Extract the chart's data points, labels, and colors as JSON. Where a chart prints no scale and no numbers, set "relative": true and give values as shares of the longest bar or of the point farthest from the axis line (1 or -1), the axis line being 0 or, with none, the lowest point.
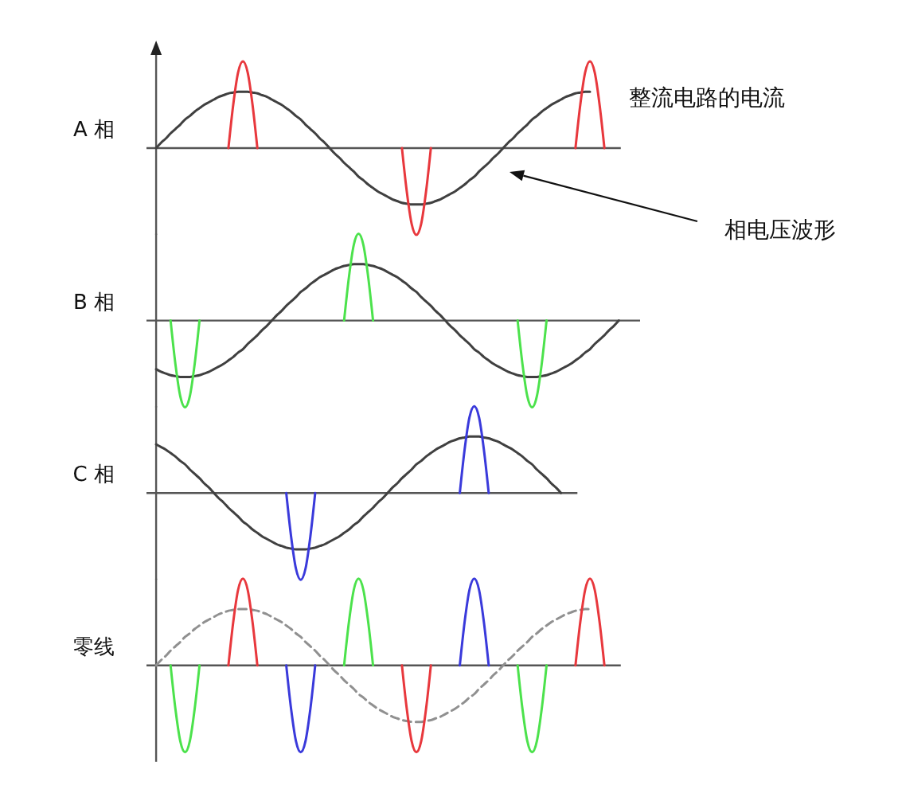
{
  "chart_data": [
    {
      "type": "line",
      "relative": true,
      "ylabel": "A 相",
      "categories": [
        null,
        null,
        null,
        null,
        null,
        null,
        null,
        null,
        null,
        null,
        null,
        null,
        null,
        null,
        null,
        null,
        null,
        null,
        null,
        null,
        null,
        null,
        null,
        null,
        null,
        null,
        null,
        null,
        null,
        null,
        null,
        null,
        null,
        null,
        null,
        null,
        null,
        null,
        null,
        null,
        null,
        null,
        null,
        null,
        null,
        null,
        null,
        null,
        null,
        null,
        null,
        null,
        null,
        null,
        null,
        null,
        null,
        null,
        null,
        null,
        null,
        null,
        null,
        null,
        null,
        null,
        null,
        null,
        null,
        null,
        null,
        null,
        null,
        null,
        null,
        null,
        null,
        null,
        null,
        null,
        null,
        null,
        null,
        null,
        null,
        null,
        null,
        null,
        null,
        null,
        null,
        null,
        null,
        null,
        null,
        null,
        null
      ],
      "annotations": [
        "整流电路的电流",
        "相电压波形"
      ],
      "series": [
        {
          "color": "#404040",
          "values": [
            0,
            0.06,
            0.11,
            0.17,
            0.22,
            0.27,
            0.33,
            0.37,
            0.42,
            0.46,
            0.5,
            0.53,
            0.56,
            0.59,
            0.61,
            0.63,
            0.64,
            0.65,
            0.65,
            0.65,
            0.64,
            0.63,
            0.61,
            0.59,
            0.56,
            0.53,
            0.5,
            0.46,
            0.42,
            0.37,
            0.33,
            0.27,
            0.22,
            0.17,
            0.11,
            0.06,
            0,
            -0.06,
            -0.11,
            -0.17,
            -0.22,
            -0.27,
            -0.33,
            -0.37,
            -0.42,
            -0.46,
            -0.5,
            -0.53,
            -0.56,
            -0.59,
            -0.61,
            -0.63,
            -0.64,
            -0.65,
            -0.65,
            -0.65,
            -0.64,
            -0.63,
            -0.61,
            -0.59,
            -0.56,
            -0.53,
            -0.5,
            -0.46,
            -0.42,
            -0.37,
            -0.33,
            -0.27,
            -0.22,
            -0.17,
            -0.11,
            -0.06,
            0,
            0.06,
            0.11,
            0.17,
            0.22,
            0.27,
            0.33,
            0.37,
            0.42,
            0.46,
            0.5,
            0.53,
            0.56,
            0.59,
            0.61,
            0.63,
            0.64,
            0.65,
            0.65,
            null,
            null,
            null,
            null,
            null,
            null
          ]
        },
        {
          "color": "#e8383d",
          "values": [
            null,
            null,
            null,
            null,
            null,
            null,
            null,
            null,
            null,
            null,
            null,
            null,
            null,
            null,
            null,
            0,
            0.5,
            0.87,
            1,
            0.87,
            0.5,
            0,
            null,
            null,
            null,
            null,
            null,
            null,
            null,
            null,
            null,
            null,
            null,
            null,
            null,
            null,
            null,
            null,
            null,
            null,
            null,
            null,
            null,
            null,
            null,
            null,
            null,
            null,
            null,
            null,
            null,
            0,
            -0.5,
            -0.87,
            -1,
            -0.87,
            -0.5,
            0,
            null,
            null,
            null,
            null,
            null,
            null,
            null,
            null,
            null,
            null,
            null,
            null,
            null,
            null,
            null,
            null,
            null,
            null,
            null,
            null,
            null,
            null,
            null,
            null,
            null,
            null,
            null,
            null,
            null,
            0,
            0.5,
            0.87,
            1,
            0.87,
            0.5,
            0,
            null,
            null,
            null
          ]
        }
      ]
    },
    {
      "type": "line",
      "relative": true,
      "ylabel": "B 相",
      "categories": [
        null,
        null,
        null,
        null,
        null,
        null,
        null,
        null,
        null,
        null,
        null,
        null,
        null,
        null,
        null,
        null,
        null,
        null,
        null,
        null,
        null,
        null,
        null,
        null,
        null,
        null,
        null,
        null,
        null,
        null,
        null,
        null,
        null,
        null,
        null,
        null,
        null,
        null,
        null,
        null,
        null,
        null,
        null,
        null,
        null,
        null,
        null,
        null,
        null,
        null,
        null,
        null,
        null,
        null,
        null,
        null,
        null,
        null,
        null,
        null,
        null,
        null,
        null,
        null,
        null,
        null,
        null,
        null,
        null,
        null,
        null,
        null,
        null,
        null,
        null,
        null,
        null,
        null,
        null,
        null,
        null,
        null,
        null,
        null,
        null,
        null,
        null,
        null,
        null,
        null,
        null,
        null,
        null,
        null,
        null,
        null,
        null,
        null,
        null,
        null,
        null
      ],
      "series": [
        {
          "color": "#404040",
          "values": [
            -0.56,
            -0.59,
            -0.61,
            -0.63,
            -0.64,
            -0.65,
            -0.65,
            -0.65,
            -0.64,
            -0.63,
            -0.61,
            -0.59,
            -0.56,
            -0.53,
            -0.5,
            -0.46,
            -0.42,
            -0.37,
            -0.33,
            -0.27,
            -0.22,
            -0.17,
            -0.11,
            -0.06,
            0,
            0.06,
            0.11,
            0.17,
            0.22,
            0.27,
            0.33,
            0.37,
            0.42,
            0.46,
            0.5,
            0.53,
            0.56,
            0.59,
            0.61,
            0.63,
            0.64,
            0.65,
            0.65,
            0.65,
            0.64,
            0.63,
            0.61,
            0.59,
            0.56,
            0.53,
            0.5,
            0.46,
            0.42,
            0.37,
            0.33,
            0.27,
            0.22,
            0.17,
            0.11,
            0.06,
            0,
            -0.06,
            -0.11,
            -0.17,
            -0.22,
            -0.27,
            -0.33,
            -0.37,
            -0.42,
            -0.46,
            -0.5,
            -0.53,
            -0.56,
            -0.59,
            -0.61,
            -0.63,
            -0.64,
            -0.65,
            -0.65,
            -0.65,
            -0.64,
            -0.63,
            -0.61,
            -0.59,
            -0.56,
            -0.53,
            -0.5,
            -0.46,
            -0.42,
            -0.37,
            -0.33,
            -0.27,
            -0.22,
            -0.17,
            -0.11,
            -0.06,
            0,
            null,
            null,
            null,
            null
          ]
        },
        {
          "color": "#4ce24c",
          "values": [
            null,
            null,
            null,
            0,
            -0.5,
            -0.87,
            -1,
            -0.87,
            -0.5,
            0,
            null,
            null,
            null,
            null,
            null,
            null,
            null,
            null,
            null,
            null,
            null,
            null,
            null,
            null,
            null,
            null,
            null,
            null,
            null,
            null,
            null,
            null,
            null,
            null,
            null,
            null,
            null,
            null,
            null,
            0,
            0.5,
            0.87,
            1,
            0.87,
            0.5,
            0,
            null,
            null,
            null,
            null,
            null,
            null,
            null,
            null,
            null,
            null,
            null,
            null,
            null,
            null,
            null,
            null,
            null,
            null,
            null,
            null,
            null,
            null,
            null,
            null,
            null,
            null,
            null,
            null,
            null,
            0,
            -0.5,
            -0.87,
            -1,
            -0.87,
            -0.5,
            0,
            null,
            null,
            null,
            null,
            null,
            null,
            null,
            null,
            null,
            null,
            null,
            null,
            null,
            null,
            null,
            null,
            null,
            null,
            null
          ]
        }
      ]
    },
    {
      "type": "line",
      "relative": true,
      "ylabel": "C 相",
      "categories": [
        null,
        null,
        null,
        null,
        null,
        null,
        null,
        null,
        null,
        null,
        null,
        null,
        null,
        null,
        null,
        null,
        null,
        null,
        null,
        null,
        null,
        null,
        null,
        null,
        null,
        null,
        null,
        null,
        null,
        null,
        null,
        null,
        null,
        null,
        null,
        null,
        null,
        null,
        null,
        null,
        null,
        null,
        null,
        null,
        null,
        null,
        null,
        null,
        null,
        null,
        null,
        null,
        null,
        null,
        null,
        null,
        null,
        null,
        null,
        null,
        null,
        null,
        null,
        null,
        null,
        null,
        null,
        null,
        null,
        null,
        null,
        null,
        null,
        null,
        null,
        null,
        null,
        null,
        null,
        null,
        null,
        null,
        null,
        null,
        null,
        null,
        null,
        null
      ],
      "series": [
        {
          "color": "#404040",
          "values": [
            0.56,
            0.53,
            0.5,
            0.46,
            0.42,
            0.37,
            0.33,
            0.27,
            0.22,
            0.17,
            0.11,
            0.06,
            0,
            -0.06,
            -0.11,
            -0.17,
            -0.22,
            -0.27,
            -0.33,
            -0.37,
            -0.42,
            -0.46,
            -0.5,
            -0.53,
            -0.56,
            -0.59,
            -0.61,
            -0.63,
            -0.64,
            -0.65,
            -0.65,
            -0.65,
            -0.64,
            -0.63,
            -0.61,
            -0.59,
            -0.56,
            -0.53,
            -0.5,
            -0.46,
            -0.42,
            -0.37,
            -0.33,
            -0.27,
            -0.22,
            -0.17,
            -0.11,
            -0.06,
            0,
            0.06,
            0.11,
            0.17,
            0.22,
            0.27,
            0.33,
            0.37,
            0.42,
            0.46,
            0.5,
            0.53,
            0.56,
            0.59,
            0.61,
            0.63,
            0.64,
            0.65,
            0.65,
            0.65,
            0.64,
            0.63,
            0.61,
            0.59,
            0.56,
            0.53,
            0.5,
            0.46,
            0.42,
            0.37,
            0.33,
            0.27,
            0.22,
            0.17,
            0.11,
            0.06,
            0,
            null,
            null,
            null
          ]
        },
        {
          "color": "#3a3adb",
          "values": [
            null,
            null,
            null,
            null,
            null,
            null,
            null,
            null,
            null,
            null,
            null,
            null,
            null,
            null,
            null,
            null,
            null,
            null,
            null,
            null,
            null,
            null,
            null,
            null,
            null,
            null,
            null,
            0,
            -0.5,
            -0.87,
            -1,
            -0.87,
            -0.5,
            0,
            null,
            null,
            null,
            null,
            null,
            null,
            null,
            null,
            null,
            null,
            null,
            null,
            null,
            null,
            null,
            null,
            null,
            null,
            null,
            null,
            null,
            null,
            null,
            null,
            null,
            null,
            null,
            null,
            null,
            0,
            0.5,
            0.87,
            1,
            0.87,
            0.5,
            0,
            null,
            null,
            null,
            null,
            null,
            null,
            null,
            null,
            null,
            null,
            null,
            null,
            null,
            null,
            null,
            null,
            null,
            null
          ]
        }
      ]
    },
    {
      "type": "line",
      "relative": true,
      "ylabel": "零线",
      "categories": [
        null,
        null,
        null,
        null,
        null,
        null,
        null,
        null,
        null,
        null,
        null,
        null,
        null,
        null,
        null,
        null,
        null,
        null,
        null,
        null,
        null,
        null,
        null,
        null,
        null,
        null,
        null,
        null,
        null,
        null,
        null,
        null,
        null,
        null,
        null,
        null,
        null,
        null,
        null,
        null,
        null,
        null,
        null,
        null,
        null,
        null,
        null,
        null,
        null,
        null,
        null,
        null,
        null,
        null,
        null,
        null,
        null,
        null,
        null,
        null,
        null,
        null,
        null,
        null,
        null,
        null,
        null,
        null,
        null,
        null,
        null,
        null,
        null,
        null,
        null,
        null,
        null,
        null,
        null,
        null,
        null,
        null,
        null,
        null,
        null,
        null,
        null,
        null,
        null,
        null,
        null,
        null,
        null,
        null,
        null,
        null,
        null
      ],
      "series": [
        {
          "color": "#909090",
          "line_style": "dashed",
          "values": [
            0,
            0.06,
            0.11,
            0.17,
            0.22,
            0.27,
            0.33,
            0.37,
            0.42,
            0.46,
            0.5,
            0.53,
            0.56,
            0.59,
            0.61,
            0.63,
            0.64,
            0.65,
            0.65,
            0.65,
            0.64,
            0.63,
            0.61,
            0.59,
            0.56,
            0.53,
            0.5,
            0.46,
            0.42,
            0.37,
            0.33,
            0.27,
            0.22,
            0.17,
            0.11,
            0.06,
            0,
            -0.06,
            -0.11,
            -0.17,
            -0.22,
            -0.27,
            -0.33,
            -0.37,
            -0.42,
            -0.46,
            -0.5,
            -0.53,
            -0.56,
            -0.59,
            -0.61,
            -0.63,
            -0.64,
            -0.65,
            -0.65,
            -0.65,
            -0.64,
            -0.63,
            -0.61,
            -0.59,
            -0.56,
            -0.53,
            -0.5,
            -0.46,
            -0.42,
            -0.37,
            -0.33,
            -0.27,
            -0.22,
            -0.17,
            -0.11,
            -0.06,
            0,
            0.06,
            0.11,
            0.17,
            0.22,
            0.27,
            0.33,
            0.37,
            0.42,
            0.46,
            0.5,
            0.53,
            0.56,
            0.59,
            0.61,
            0.63,
            0.64,
            0.65,
            0.65,
            null,
            null,
            null,
            null,
            null,
            null
          ]
        },
        {
          "color": "#4ce24c",
          "values": [
            null,
            null,
            null,
            0,
            -0.5,
            -0.87,
            -1,
            -0.87,
            -0.5,
            0,
            null,
            null,
            null,
            null,
            null,
            null,
            null,
            null,
            null,
            null,
            null,
            null,
            null,
            null,
            null,
            null,
            null,
            null,
            null,
            null,
            null,
            null,
            null,
            null,
            null,
            null,
            null,
            null,
            null,
            0,
            0.5,
            0.87,
            1,
            0.87,
            0.5,
            0,
            null,
            null,
            null,
            null,
            null,
            null,
            null,
            null,
            null,
            null,
            null,
            null,
            null,
            null,
            null,
            null,
            null,
            null,
            null,
            null,
            null,
            null,
            null,
            null,
            null,
            null,
            null,
            null,
            null,
            0,
            -0.5,
            -0.87,
            -1,
            -0.87,
            -0.5,
            0,
            null,
            null,
            null,
            null,
            null,
            null,
            null,
            null,
            null,
            null,
            null,
            null,
            null,
            null,
            null
          ]
        },
        {
          "color": "#e8383d",
          "values": [
            null,
            null,
            null,
            null,
            null,
            null,
            null,
            null,
            null,
            null,
            null,
            null,
            null,
            null,
            null,
            0,
            0.5,
            0.87,
            1,
            0.87,
            0.5,
            0,
            null,
            null,
            null,
            null,
            null,
            null,
            null,
            null,
            null,
            null,
            null,
            null,
            null,
            null,
            null,
            null,
            null,
            null,
            null,
            null,
            null,
            null,
            null,
            null,
            null,
            null,
            null,
            null,
            null,
            0,
            -0.5,
            -0.87,
            -1,
            -0.87,
            -0.5,
            0,
            null,
            null,
            null,
            null,
            null,
            null,
            null,
            null,
            null,
            null,
            null,
            null,
            null,
            null,
            null,
            null,
            null,
            null,
            null,
            null,
            null,
            null,
            null,
            null,
            null,
            null,
            null,
            null,
            null,
            0,
            0.5,
            0.87,
            1,
            0.87,
            0.5,
            0,
            null,
            null,
            null
          ]
        },
        {
          "color": "#3a3adb",
          "values": [
            null,
            null,
            null,
            null,
            null,
            null,
            null,
            null,
            null,
            null,
            null,
            null,
            null,
            null,
            null,
            null,
            null,
            null,
            null,
            null,
            null,
            null,
            null,
            null,
            null,
            null,
            null,
            0,
            -0.5,
            -0.87,
            -1,
            -0.87,
            -0.5,
            0,
            null,
            null,
            null,
            null,
            null,
            null,
            null,
            null,
            null,
            null,
            null,
            null,
            null,
            null,
            null,
            null,
            null,
            null,
            null,
            null,
            null,
            null,
            null,
            null,
            null,
            null,
            null,
            null,
            null,
            0,
            0.5,
            0.87,
            1,
            0.87,
            0.5,
            0,
            null,
            null,
            null,
            null,
            null,
            null,
            null,
            null,
            null,
            null,
            null,
            null,
            null,
            null,
            null,
            null,
            null,
            null,
            null,
            null,
            null,
            null,
            null,
            null,
            null,
            null,
            null
          ]
        }
      ]
    }
  ]
}
